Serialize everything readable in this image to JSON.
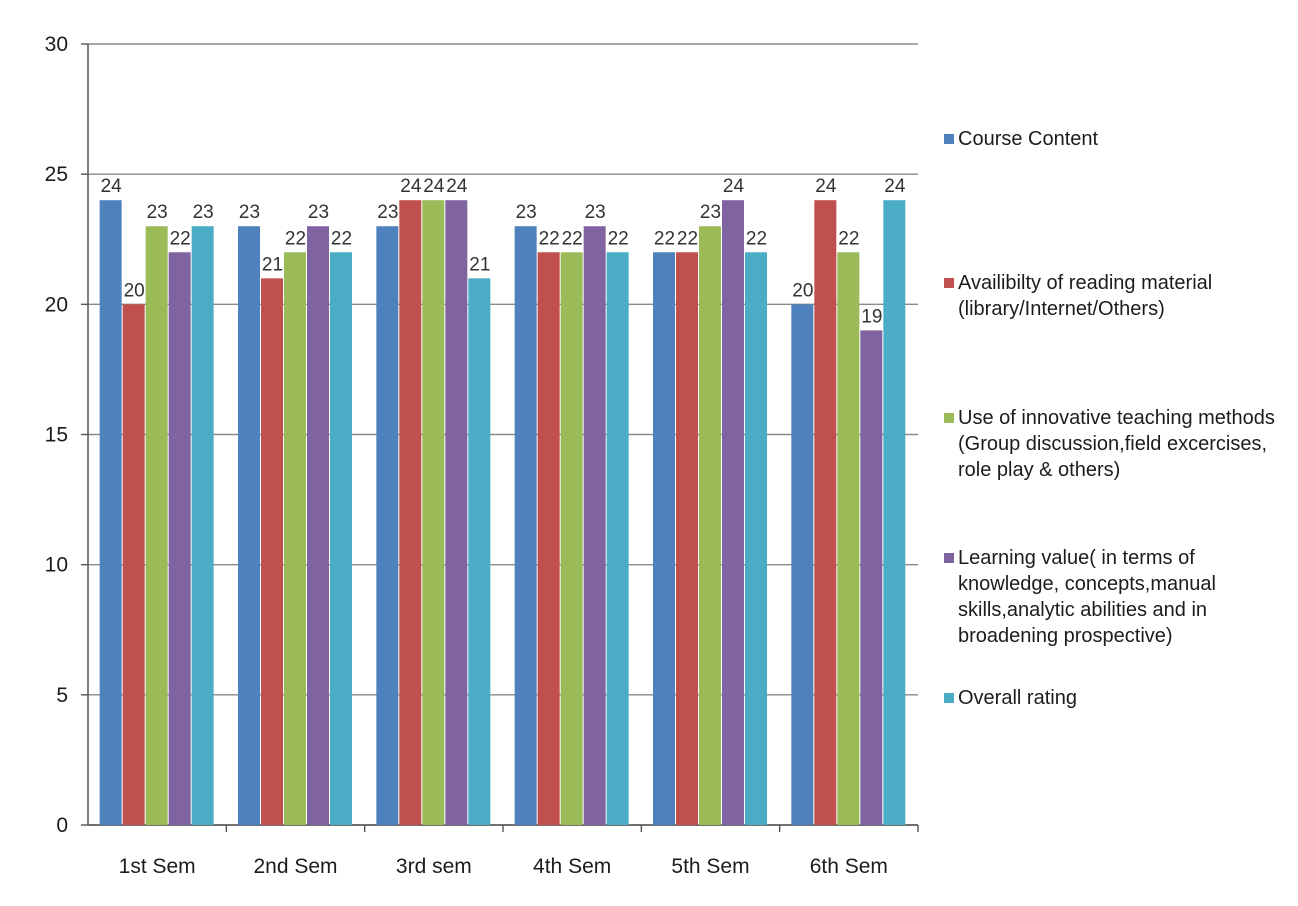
{
  "chart_data": {
    "type": "bar",
    "title": "",
    "xlabel": "",
    "ylabel": "",
    "categories": [
      "1st Sem",
      "2nd Sem",
      "3rd sem",
      "4th Sem",
      "5th Sem",
      "6th Sem"
    ],
    "series": [
      {
        "name": "Course Content",
        "color": "#4f81bd",
        "values": [
          24,
          23,
          23,
          23,
          22,
          20
        ]
      },
      {
        "name": "Availibilty of reading material (library/Internet/Others)",
        "color": "#c0504d",
        "values": [
          20,
          21,
          24,
          22,
          22,
          24
        ]
      },
      {
        "name": "Use of innovative teaching methods (Group discussion,field excercises, role play & others)",
        "color": "#9bbb59",
        "values": [
          23,
          22,
          24,
          22,
          23,
          22
        ]
      },
      {
        "name": "Learning value( in terms of knowledge, concepts,manual skills,analytic abilities and in broadening prospective)",
        "color": "#8064a2",
        "values": [
          22,
          23,
          24,
          23,
          24,
          19
        ]
      },
      {
        "name": "Overall rating",
        "color": "#4bacc6",
        "values": [
          23,
          22,
          21,
          22,
          22,
          24
        ]
      }
    ],
    "ylim": [
      0,
      30
    ],
    "yticks": [
      "0",
      "5",
      "10",
      "15",
      "20",
      "25",
      "30"
    ],
    "grid": true,
    "legend_position": "right",
    "data_labels": true
  }
}
